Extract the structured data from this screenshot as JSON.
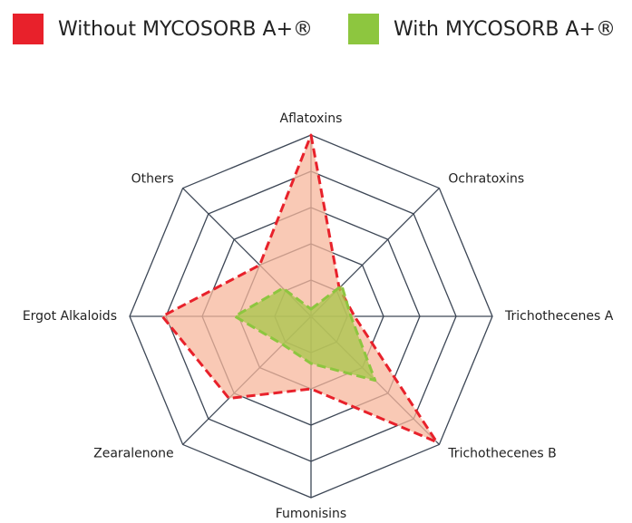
{
  "chart_data": {
    "type": "radar",
    "categories": [
      "Aflatoxins",
      "Ochratoxins",
      "Trichothecenes A",
      "Trichothecenes B",
      "Fumonisins",
      "Zearalenone",
      "Ergot Alkaloids",
      "Others"
    ],
    "series": [
      {
        "name": "Without MYCOSORB A+®",
        "color": "#e8212b",
        "fill": "#f7b79c",
        "values": [
          5,
          1.1,
          1.2,
          4.9,
          2,
          3.2,
          4.1,
          2
        ]
      },
      {
        "name": "With MYCOSORB A+®",
        "color": "#8dc63f",
        "fill": "#a7c64a",
        "values": [
          0.2,
          1.2,
          1.1,
          2.5,
          1.3,
          1.1,
          2.1,
          1.1
        ]
      }
    ],
    "rlim": [
      0,
      5
    ],
    "rticks": [
      1,
      2,
      3,
      4,
      5
    ],
    "grid": true
  }
}
